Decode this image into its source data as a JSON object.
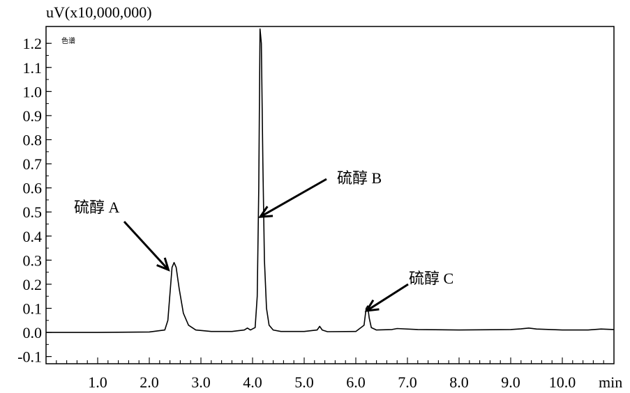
{
  "chart_data": {
    "type": "line",
    "y_unit_label": "uV(x10,000,000)",
    "x_unit_label": "min",
    "legend_label": "色谱",
    "x_ticks": [
      "1.0",
      "2.0",
      "3.0",
      "4.0",
      "5.0",
      "6.0",
      "7.0",
      "8.0",
      "9.0",
      "10.0"
    ],
    "y_ticks": [
      "-0.1",
      "0.0",
      "0.1",
      "0.2",
      "0.3",
      "0.4",
      "0.5",
      "0.6",
      "0.7",
      "0.8",
      "0.9",
      "1.0",
      "1.1",
      "1.2"
    ],
    "xlim": [
      0,
      11.0
    ],
    "ylim": [
      -0.13,
      1.27
    ],
    "grid": false,
    "series": [
      {
        "color": "#000000",
        "x": [
          0.0,
          1.0,
          2.0,
          2.3,
          2.36,
          2.4,
          2.44,
          2.48,
          2.52,
          2.58,
          2.66,
          2.76,
          2.9,
          3.2,
          3.6,
          3.84,
          3.9,
          3.96,
          4.05,
          4.09,
          4.12,
          4.145,
          4.17,
          4.2,
          4.23,
          4.27,
          4.32,
          4.4,
          4.55,
          5.0,
          5.25,
          5.3,
          5.35,
          5.45,
          6.0,
          6.16,
          6.2,
          6.23,
          6.26,
          6.3,
          6.4,
          6.7,
          6.8,
          7.2,
          8.0,
          9.0,
          9.2,
          9.35,
          9.5,
          10.0,
          10.5,
          10.75,
          11.0
        ],
        "y": [
          0.0,
          0.0,
          0.002,
          0.01,
          0.05,
          0.16,
          0.27,
          0.29,
          0.27,
          0.18,
          0.08,
          0.03,
          0.01,
          0.004,
          0.004,
          0.01,
          0.018,
          0.01,
          0.02,
          0.15,
          0.6,
          1.26,
          1.2,
          0.7,
          0.3,
          0.1,
          0.03,
          0.01,
          0.004,
          0.004,
          0.01,
          0.025,
          0.01,
          0.003,
          0.004,
          0.03,
          0.1,
          0.11,
          0.06,
          0.02,
          0.01,
          0.012,
          0.016,
          0.012,
          0.01,
          0.012,
          0.015,
          0.018,
          0.014,
          0.01,
          0.01,
          0.014,
          0.012
        ]
      }
    ],
    "annotations": [
      {
        "text": "硫醇 A",
        "x": 2.37,
        "y": 0.26
      },
      {
        "text": "硫醇 B",
        "x": 4.15,
        "y": 0.48
      },
      {
        "text": "硫醇 C",
        "x": 6.21,
        "y": 0.09
      }
    ]
  }
}
